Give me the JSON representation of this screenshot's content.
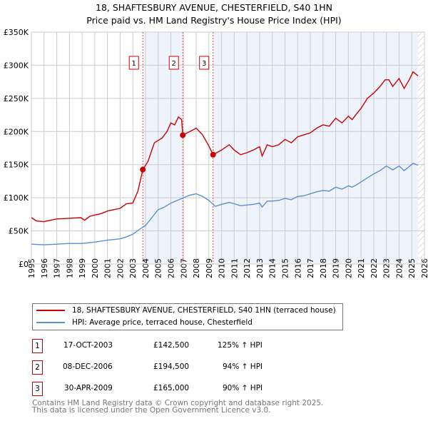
{
  "title": "18, SHAFTESBURY AVENUE, CHESTERFIELD, S40 1HN",
  "subtitle": "Price paid vs. HM Land Registry's House Price Index (HPI)",
  "chart_data": {
    "type": "line",
    "ylim": [
      0,
      350000
    ],
    "xlim": [
      1995,
      2026
    ],
    "yticks": [
      {
        "v": 0,
        "label": "£0"
      },
      {
        "v": 50000,
        "label": "£50K"
      },
      {
        "v": 100000,
        "label": "£100K"
      },
      {
        "v": 150000,
        "label": "£150K"
      },
      {
        "v": 200000,
        "label": "£200K"
      },
      {
        "v": 250000,
        "label": "£250K"
      },
      {
        "v": 300000,
        "label": "£300K"
      },
      {
        "v": 350000,
        "label": "£350K"
      }
    ],
    "xticks": [
      "1995",
      "1996",
      "1997",
      "1998",
      "1999",
      "2000",
      "2001",
      "2002",
      "2003",
      "2004",
      "2005",
      "2006",
      "2007",
      "2008",
      "2009",
      "2010",
      "2011",
      "2012",
      "2013",
      "2014",
      "2015",
      "2016",
      "2017",
      "2018",
      "2019",
      "2020",
      "2021",
      "2022",
      "2023",
      "2024",
      "2025",
      "2026"
    ],
    "series": [
      {
        "name": "18, SHAFTESBURY AVENUE, CHESTERFIELD, S40 1HN (terraced house)",
        "color": "#cc0000",
        "x": [
          1995,
          1995.4,
          1996,
          1996.5,
          1997,
          1998,
          1998.9,
          1999.2,
          1999.6,
          2000,
          2000.5,
          2001,
          2001.5,
          2002,
          2002.5,
          2003,
          2003.4,
          2003.79,
          2004.2,
          2004.7,
          2005.3,
          2005.7,
          2006,
          2006.3,
          2006.6,
          2006.85,
          2006.94,
          2007.5,
          2008,
          2008.5,
          2009,
          2009.33,
          2010,
          2010.6,
          2011,
          2011.5,
          2012,
          2012.5,
          2013,
          2013.2,
          2013.6,
          2014,
          2014.5,
          2015,
          2015.5,
          2016,
          2016.5,
          2017,
          2017.5,
          2018,
          2018.5,
          2019,
          2019.5,
          2020,
          2020.3,
          2020.7,
          2021,
          2021.5,
          2022,
          2022.5,
          2022.9,
          2023.2,
          2023.5,
          2024,
          2024.4,
          2024.8,
          2025.1,
          2025.5
        ],
        "y": [
          70000,
          65000,
          64000,
          66000,
          68000,
          69000,
          70000,
          66000,
          72000,
          74000,
          76000,
          80000,
          82000,
          84000,
          91000,
          92000,
          110000,
          142500,
          155000,
          183000,
          190000,
          200000,
          213000,
          210000,
          222000,
          218000,
          194500,
          200000,
          205000,
          195000,
          178000,
          165000,
          172000,
          180000,
          172000,
          165000,
          168000,
          172000,
          177000,
          163000,
          180000,
          177000,
          180000,
          188000,
          183000,
          192000,
          195000,
          198000,
          205000,
          210000,
          208000,
          220000,
          213000,
          223000,
          218000,
          228000,
          235000,
          250000,
          258000,
          268000,
          278000,
          278000,
          268000,
          280000,
          265000,
          278000,
          290000,
          284000
        ]
      },
      {
        "name": "HPI: Average price, terraced house, Chesterfield",
        "color": "#5b8fd4",
        "x": [
          1995,
          1996,
          1997,
          1998,
          1999,
          2000,
          2001,
          2002,
          2002.5,
          2003,
          2003.5,
          2004,
          2004.5,
          2005,
          2005.5,
          2006,
          2006.5,
          2007,
          2007.5,
          2008,
          2008.5,
          2009,
          2009.5,
          2010,
          2010.6,
          2011,
          2011.5,
          2012,
          2012.5,
          2013,
          2013.2,
          2013.6,
          2014,
          2014.5,
          2015,
          2015.5,
          2016,
          2016.5,
          2017,
          2017.5,
          2018,
          2018.5,
          2019,
          2019.5,
          2020,
          2020.3,
          2020.7,
          2021,
          2021.5,
          2022,
          2022.5,
          2023,
          2023.5,
          2024,
          2024.4,
          2024.8,
          2025.1,
          2025.5
        ],
        "y": [
          30000,
          29000,
          30000,
          31000,
          31000,
          33000,
          36000,
          38000,
          41000,
          45000,
          52000,
          58000,
          70000,
          82000,
          86000,
          92000,
          96000,
          100000,
          104000,
          106000,
          102000,
          96000,
          87000,
          90000,
          93000,
          91000,
          88000,
          89000,
          90000,
          92000,
          86000,
          95000,
          95000,
          96000,
          99000,
          97000,
          102000,
          103000,
          106000,
          109000,
          111000,
          110000,
          116000,
          113000,
          118000,
          116000,
          120000,
          124000,
          130000,
          136000,
          141000,
          148000,
          142000,
          148000,
          141000,
          147000,
          152000,
          149000
        ]
      }
    ],
    "sales": [
      {
        "n": "1",
        "x": 2003.79,
        "y": 142500,
        "date": "17-OCT-2003",
        "price": "£142,500",
        "hpi": "125% ↑ HPI"
      },
      {
        "n": "2",
        "x": 2006.94,
        "y": 194500,
        "date": "08-DEC-2006",
        "price": "£194,500",
        "hpi": "94% ↑ HPI"
      },
      {
        "n": "3",
        "x": 2009.33,
        "y": 165000,
        "date": "30-APR-2009",
        "price": "£165,000",
        "hpi": "90% ↑ HPI"
      }
    ],
    "shaded": [
      [
        2003.79,
        2006.94
      ],
      [
        2009.33,
        2025.5
      ]
    ],
    "hatch_from": 2025.5
  },
  "footer": [
    "Contains HM Land Registry data © Crown copyright and database right 2025.",
    "This data is licensed under the Open Government Licence v3.0."
  ]
}
